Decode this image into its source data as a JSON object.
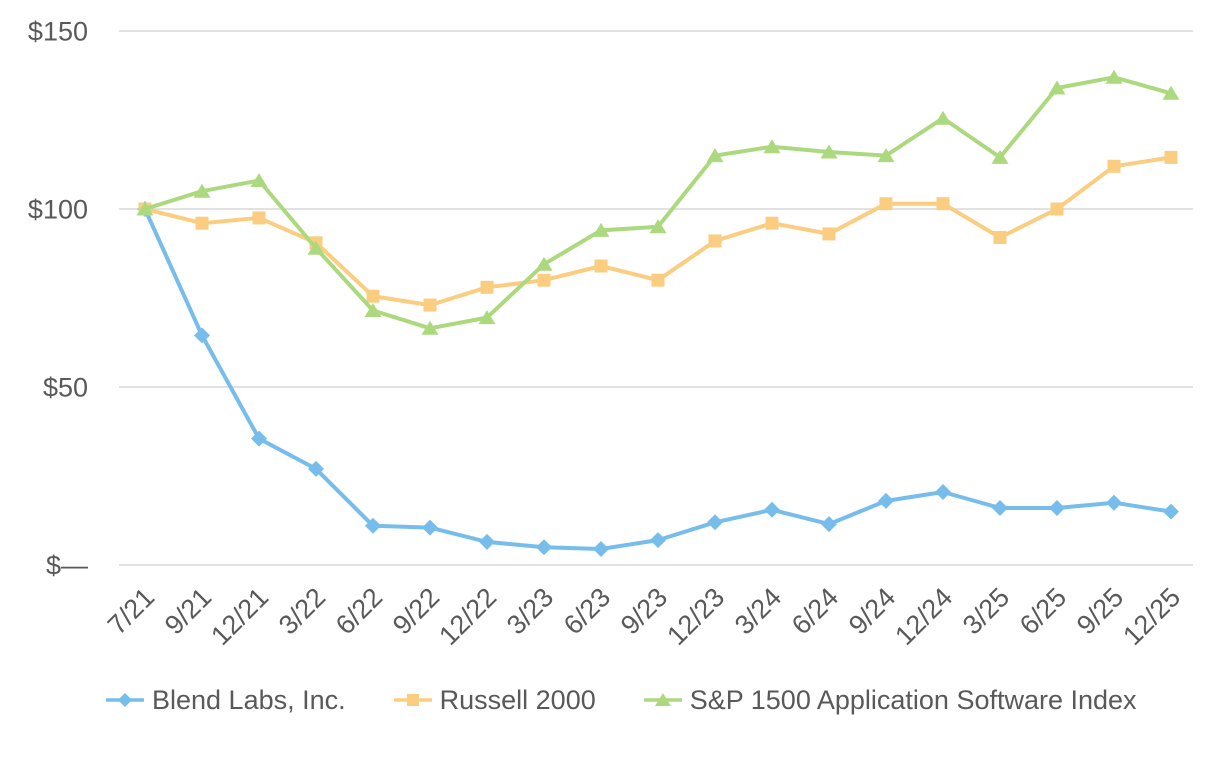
{
  "chart_data": {
    "type": "line",
    "title": "",
    "xlabel": "",
    "ylabel": "",
    "grid": true,
    "legend_position": "bottom",
    "ylim": [
      0,
      157
    ],
    "y_ticks": [
      {
        "value": 150,
        "label": "$150"
      },
      {
        "value": 100,
        "label": "$100"
      },
      {
        "value": 50,
        "label": "$50"
      },
      {
        "value": 0,
        "label": "$—"
      }
    ],
    "categories": [
      "7/21",
      "9/21",
      "12/21",
      "3/22",
      "6/22",
      "9/22",
      "12/22",
      "3/23",
      "6/23",
      "9/23",
      "12/23",
      "3/24",
      "6/24",
      "9/24",
      "12/24",
      "3/25",
      "6/25",
      "9/25",
      "12/25"
    ],
    "series": [
      {
        "name": "Blend Labs, Inc.",
        "marker": "diamond",
        "color": "#76BDEB",
        "values": [
          100,
          64.5,
          35.5,
          27,
          11,
          10.5,
          6.5,
          5,
          4.5,
          7,
          12,
          15.5,
          11.5,
          18,
          20.5,
          16,
          16,
          17.5,
          15
        ]
      },
      {
        "name": "Russell 2000",
        "marker": "square",
        "color": "#FACD80",
        "values": [
          100,
          96,
          97.5,
          90.5,
          75.5,
          73,
          78,
          80,
          84,
          80,
          91,
          96,
          93,
          101.5,
          101.5,
          92,
          100,
          112,
          114.5
        ]
      },
      {
        "name": "S&P 1500 Application Software Index",
        "marker": "triangle",
        "color": "#ACD97E",
        "values": [
          100,
          105,
          108,
          89,
          71.5,
          66.5,
          69.5,
          84.5,
          94,
          95,
          115,
          117.5,
          116,
          115,
          125.5,
          114.5,
          134,
          137,
          132.5
        ]
      }
    ]
  },
  "colors": {
    "axis_text": "#595959",
    "gridline": "#D9D9D9",
    "background": "#FFFFFF"
  }
}
